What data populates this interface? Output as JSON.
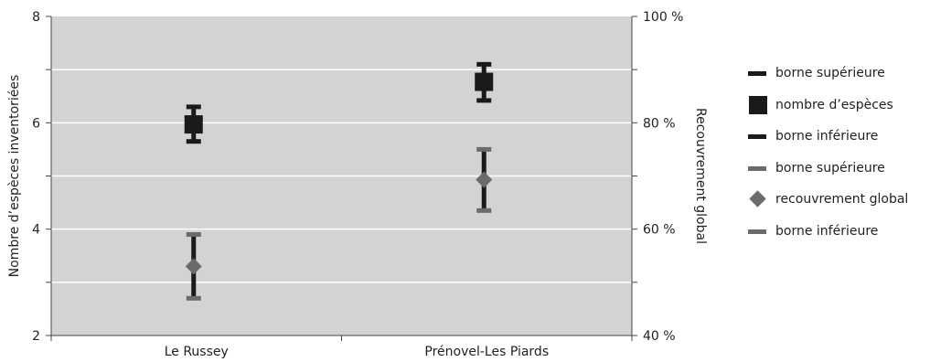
{
  "chart_data": {
    "type": "scatter",
    "categories": [
      "Le Russey",
      "Prénovel-Les Piards"
    ],
    "ylabel": "Nombre d’espèces inventoriées",
    "y2label": "Recouvrement global",
    "ylim": [
      2,
      8
    ],
    "yticks": [
      2,
      4,
      6,
      8
    ],
    "y2lim": [
      40,
      100
    ],
    "y2ticks": [
      "40 %",
      "60 %",
      "80 %",
      "100 %"
    ],
    "y2tick_values": [
      40,
      60,
      80,
      100
    ],
    "grid": true,
    "legend_position": "right",
    "colors": {
      "species": "#1a1a1a",
      "cover": "#6b6b6b",
      "plot_bg": "#d3d3d3"
    },
    "series": [
      {
        "name": "borne supérieure",
        "axis": "left",
        "marker": "dash",
        "color": "#1a1a1a",
        "values": [
          6.3,
          7.1
        ]
      },
      {
        "name": "nombre d’espèces",
        "axis": "left",
        "marker": "square",
        "color": "#1a1a1a",
        "values": [
          5.97,
          6.77
        ]
      },
      {
        "name": "borne inférieure",
        "axis": "left",
        "marker": "dash",
        "color": "#1a1a1a",
        "values": [
          5.65,
          6.42
        ]
      },
      {
        "name": "borne supérieure",
        "axis": "right",
        "marker": "dash",
        "color": "#6b6b6b",
        "values": [
          59,
          75
        ]
      },
      {
        "name": "recouvrement global",
        "axis": "right",
        "marker": "diamond",
        "color": "#6b6b6b",
        "values": [
          53,
          69.3
        ]
      },
      {
        "name": "borne inférieure",
        "axis": "right",
        "marker": "dash",
        "color": "#6b6b6b",
        "values": [
          47,
          63.5
        ]
      }
    ]
  }
}
